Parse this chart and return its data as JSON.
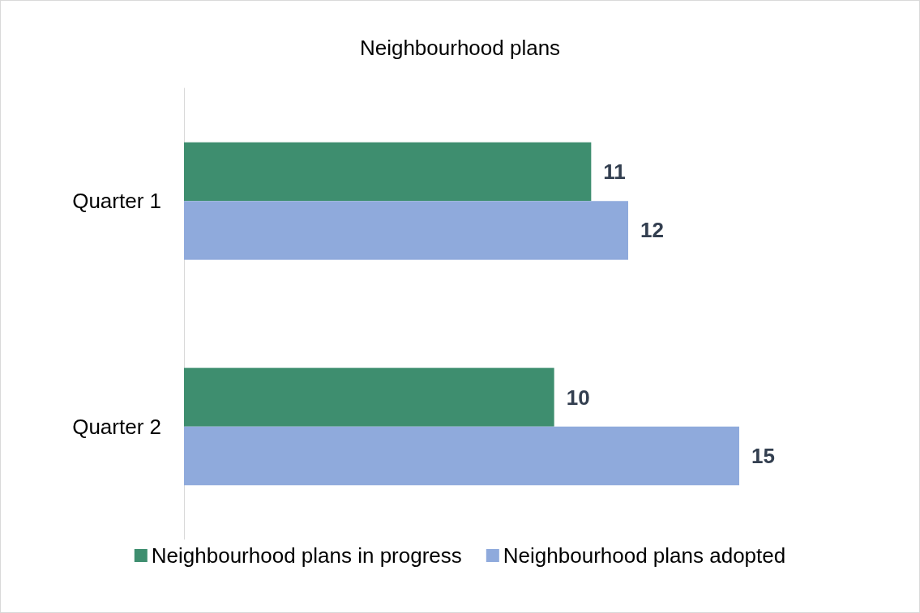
{
  "chart_data": {
    "type": "bar",
    "orientation": "horizontal",
    "title": "Neighbourhood plans",
    "categories": [
      "Quarter 1",
      "Quarter 2"
    ],
    "series": [
      {
        "name": "Neighbourhood plans in progress",
        "color": "#3e8e6f",
        "values": [
          11,
          10
        ]
      },
      {
        "name": "Neighbourhood plans adopted",
        "color": "#8faadc",
        "values": [
          12,
          15
        ]
      }
    ],
    "tick_labels": "y",
    "data_labels": true,
    "legend": "bottom"
  }
}
